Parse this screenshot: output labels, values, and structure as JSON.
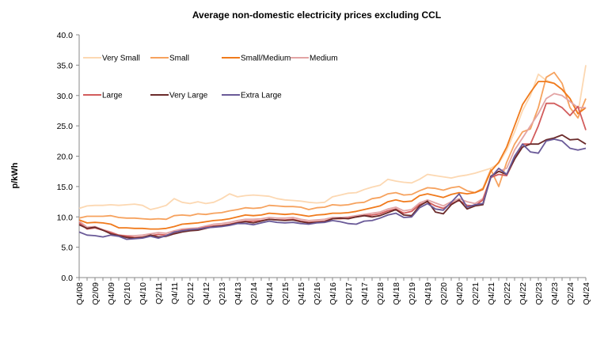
{
  "chart_data": {
    "type": "line",
    "title": "Average non-domestic electricity prices excluding CCL",
    "xlabel": "",
    "ylabel": "p/kWh",
    "ylim": [
      0,
      40
    ],
    "yticks": [
      "0.0",
      "5.0",
      "10.0",
      "15.0",
      "20.0",
      "25.0",
      "30.0",
      "35.0",
      "40.0"
    ],
    "grid": false,
    "legend": "top-left, inside plot",
    "x": [
      "Q4/08",
      "Q1/09",
      "Q2/09",
      "Q3/09",
      "Q4/09",
      "Q1/10",
      "Q2/10",
      "Q3/10",
      "Q4/10",
      "Q1/11",
      "Q2/11",
      "Q3/11",
      "Q4/11",
      "Q1/12",
      "Q2/12",
      "Q3/12",
      "Q4/12",
      "Q1/13",
      "Q2/13",
      "Q3/13",
      "Q4/13",
      "Q1/14",
      "Q2/14",
      "Q3/14",
      "Q4/14",
      "Q1/15",
      "Q2/15",
      "Q3/15",
      "Q4/15",
      "Q1/16",
      "Q2/16",
      "Q3/16",
      "Q4/16",
      "Q1/17",
      "Q2/17",
      "Q3/17",
      "Q4/17",
      "Q1/18",
      "Q2/18",
      "Q3/18",
      "Q4/18",
      "Q1/19",
      "Q2/19",
      "Q3/19",
      "Q4/19",
      "Q1/20",
      "Q2/20",
      "Q3/20",
      "Q4/20",
      "Q1/21",
      "Q2/21",
      "Q3/21",
      "Q4/21",
      "Q1/22",
      "Q2/22",
      "Q3/22",
      "Q4/22",
      "Q1/23",
      "Q2/23",
      "Q3/23",
      "Q4/23",
      "Q1/24",
      "Q2/24",
      "Q3/24",
      "Q4/24"
    ],
    "series": [
      {
        "name": "Very Small",
        "color": "#fcd8b2",
        "values": [
          11.4,
          11.8,
          11.9,
          11.9,
          12.0,
          11.9,
          12.0,
          12.1,
          11.9,
          11.2,
          11.5,
          11.9,
          13.0,
          12.4,
          12.2,
          12.5,
          12.2,
          12.4,
          13.0,
          13.8,
          13.3,
          13.5,
          13.6,
          13.5,
          13.4,
          13.0,
          12.8,
          12.7,
          12.6,
          12.4,
          12.3,
          12.4,
          13.3,
          13.6,
          13.9,
          14.0,
          14.5,
          14.9,
          15.2,
          16.2,
          15.9,
          15.7,
          15.6,
          16.2,
          17.0,
          16.8,
          16.6,
          16.4,
          16.7,
          16.9,
          17.2,
          17.6,
          18.0,
          18.8,
          21.0,
          24.0,
          27.5,
          30.0,
          33.5,
          32.5,
          32.0,
          31.0,
          29.5,
          27.0,
          35.0
        ]
      },
      {
        "name": "Small",
        "color": "#f6a25e",
        "values": [
          9.8,
          10.1,
          10.1,
          10.1,
          10.2,
          9.9,
          9.8,
          9.8,
          9.7,
          9.6,
          9.7,
          9.6,
          10.2,
          10.3,
          10.2,
          10.5,
          10.4,
          10.6,
          10.7,
          11.0,
          11.2,
          11.5,
          11.4,
          11.5,
          11.9,
          11.8,
          11.7,
          11.7,
          11.6,
          11.2,
          11.5,
          11.6,
          12.0,
          11.9,
          12.0,
          12.3,
          12.4,
          13.0,
          13.2,
          13.8,
          14.0,
          13.6,
          13.7,
          14.3,
          14.8,
          14.7,
          14.4,
          14.8,
          15.0,
          14.3,
          14.0,
          14.7,
          17.8,
          15.0,
          19.0,
          22.0,
          24.0,
          24.5,
          28.0,
          33.0,
          33.8,
          32.0,
          28.0,
          26.3,
          29.5
        ]
      },
      {
        "name": "Small/Medium",
        "color": "#f07a1c",
        "values": [
          9.5,
          9.0,
          9.1,
          9.0,
          8.8,
          8.2,
          8.2,
          8.1,
          8.1,
          8.0,
          8.0,
          8.1,
          8.4,
          8.8,
          8.9,
          9.0,
          9.2,
          9.4,
          9.5,
          9.7,
          10.0,
          10.3,
          10.2,
          10.3,
          10.6,
          10.5,
          10.4,
          10.5,
          10.3,
          10.1,
          10.3,
          10.4,
          10.6,
          10.6,
          10.7,
          10.9,
          11.2,
          11.5,
          11.8,
          12.5,
          12.8,
          12.5,
          12.6,
          13.5,
          13.8,
          13.5,
          13.2,
          13.7,
          14.0,
          13.8,
          14.0,
          14.5,
          17.5,
          19.0,
          21.5,
          25.0,
          28.5,
          30.5,
          32.3,
          32.3,
          32.0,
          31.0,
          29.5,
          27.0,
          28.0
        ]
      },
      {
        "name": "Medium",
        "color": "#e3a4a4",
        "values": [
          9.3,
          8.3,
          8.4,
          7.9,
          7.5,
          7.0,
          6.9,
          6.9,
          7.0,
          7.2,
          7.4,
          7.3,
          7.7,
          8.0,
          8.1,
          8.2,
          8.5,
          8.8,
          8.9,
          9.1,
          9.4,
          9.6,
          9.6,
          9.7,
          9.9,
          9.8,
          9.8,
          9.9,
          9.6,
          9.4,
          9.5,
          9.6,
          9.9,
          9.9,
          10.0,
          10.2,
          10.4,
          10.6,
          10.8,
          11.3,
          11.6,
          11.0,
          11.2,
          12.3,
          12.8,
          12.3,
          11.8,
          12.5,
          13.0,
          12.5,
          12.2,
          13.0,
          16.5,
          17.5,
          18.0,
          21.0,
          23.0,
          25.0,
          27.0,
          29.5,
          30.3,
          30.0,
          29.0,
          28.0,
          28.0
        ]
      },
      {
        "name": "Large",
        "color": "#d25c5c",
        "values": [
          9.0,
          8.0,
          8.2,
          7.8,
          7.4,
          7.0,
          6.8,
          6.6,
          6.7,
          6.9,
          7.1,
          7.0,
          7.4,
          7.8,
          7.9,
          8.0,
          8.3,
          8.5,
          8.6,
          8.8,
          9.1,
          9.3,
          9.3,
          9.4,
          9.6,
          9.5,
          9.5,
          9.6,
          9.3,
          9.1,
          9.2,
          9.3,
          9.7,
          9.7,
          9.8,
          10.0,
          10.2,
          10.3,
          10.5,
          11.0,
          11.3,
          10.6,
          10.9,
          12.0,
          12.5,
          11.8,
          11.4,
          12.2,
          12.7,
          11.9,
          11.8,
          12.8,
          16.5,
          17.0,
          16.8,
          19.5,
          22.0,
          22.0,
          25.0,
          28.7,
          28.7,
          28.0,
          26.7,
          28.2,
          24.3
        ]
      },
      {
        "name": "Very Large",
        "color": "#6b2b2b",
        "values": [
          8.7,
          8.1,
          8.3,
          7.8,
          7.2,
          6.9,
          6.6,
          6.5,
          6.6,
          7.0,
          6.7,
          6.8,
          7.2,
          7.5,
          7.7,
          7.8,
          8.1,
          8.4,
          8.5,
          8.7,
          9.0,
          9.2,
          9.0,
          9.3,
          9.6,
          9.5,
          9.4,
          9.5,
          9.2,
          9.0,
          9.1,
          9.2,
          9.7,
          9.8,
          9.7,
          10.0,
          10.2,
          10.0,
          10.2,
          10.7,
          11.2,
          10.3,
          10.2,
          11.8,
          12.6,
          10.8,
          10.5,
          12.0,
          12.8,
          11.3,
          11.8,
          12.0,
          16.7,
          17.5,
          17.0,
          19.5,
          21.5,
          22.0,
          22.0,
          22.7,
          23.0,
          23.5,
          22.7,
          22.8,
          22.0
        ]
      },
      {
        "name": "Extra Large",
        "color": "#6a5a98",
        "values": [
          7.5,
          7.0,
          6.9,
          6.7,
          7.0,
          6.8,
          6.3,
          6.4,
          6.5,
          6.8,
          6.5,
          6.9,
          7.5,
          7.7,
          7.9,
          8.0,
          8.2,
          8.3,
          8.4,
          8.6,
          8.9,
          8.9,
          8.7,
          9.0,
          9.3,
          9.1,
          9.0,
          9.1,
          8.9,
          8.8,
          9.0,
          9.1,
          9.4,
          9.2,
          8.9,
          8.8,
          9.3,
          9.4,
          9.8,
          10.3,
          10.6,
          9.9,
          10.0,
          11.5,
          12.2,
          11.3,
          11.1,
          12.4,
          13.8,
          11.6,
          12.0,
          12.2,
          16.5,
          18.0,
          17.0,
          20.0,
          22.0,
          20.7,
          20.5,
          22.5,
          22.8,
          22.5,
          21.3,
          21.0,
          21.3
        ]
      }
    ]
  }
}
